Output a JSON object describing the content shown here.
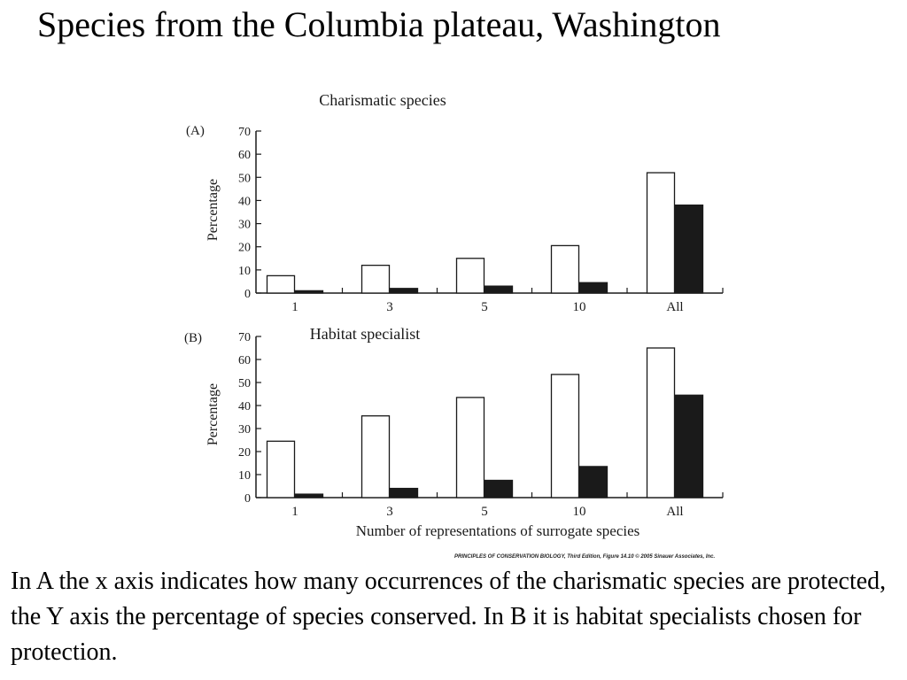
{
  "slide": {
    "title": "Species from the Columbia plateau, Washington",
    "body": "In A the x axis indicates how many occurrences of the charismatic species are protected, the Y axis the percentage of species conserved. In B it is habitat specialists chosen for protection.",
    "credit": "PRINCIPLES OF CONSERVATION BIOLOGY, Third Edition, Figure 14.10 © 2005 Sinauer Associates, Inc."
  },
  "chart_data": [
    {
      "type": "bar",
      "panel_label": "(A)",
      "title": "Charismatic species",
      "categories": [
        "1",
        "3",
        "5",
        "10",
        "All"
      ],
      "series": [
        {
          "values": [
            7.5,
            12,
            15,
            20.5,
            52
          ]
        },
        {
          "values": [
            1,
            2,
            3,
            4.5,
            38
          ]
        }
      ],
      "series_colors": [
        "#ffffff",
        "#1a1a1a"
      ],
      "ylabel": "Percentage",
      "xlabel": "",
      "ylim": [
        0,
        70
      ],
      "yticks": [
        0,
        10,
        20,
        30,
        40,
        50,
        60,
        70
      ],
      "grid": false
    },
    {
      "type": "bar",
      "panel_label": "(B)",
      "title": "Habitat specialist",
      "categories": [
        "1",
        "3",
        "5",
        "10",
        "All"
      ],
      "series": [
        {
          "values": [
            24.5,
            35.5,
            43.5,
            53.5,
            65
          ]
        },
        {
          "values": [
            1.5,
            4,
            7.5,
            13.5,
            44.5
          ]
        }
      ],
      "series_colors": [
        "#ffffff",
        "#1a1a1a"
      ],
      "ylabel": "Percentage",
      "xlabel": "Number of representations of surrogate species",
      "ylim": [
        0,
        70
      ],
      "yticks": [
        0,
        10,
        20,
        30,
        40,
        50,
        60,
        70
      ],
      "grid": false
    }
  ]
}
